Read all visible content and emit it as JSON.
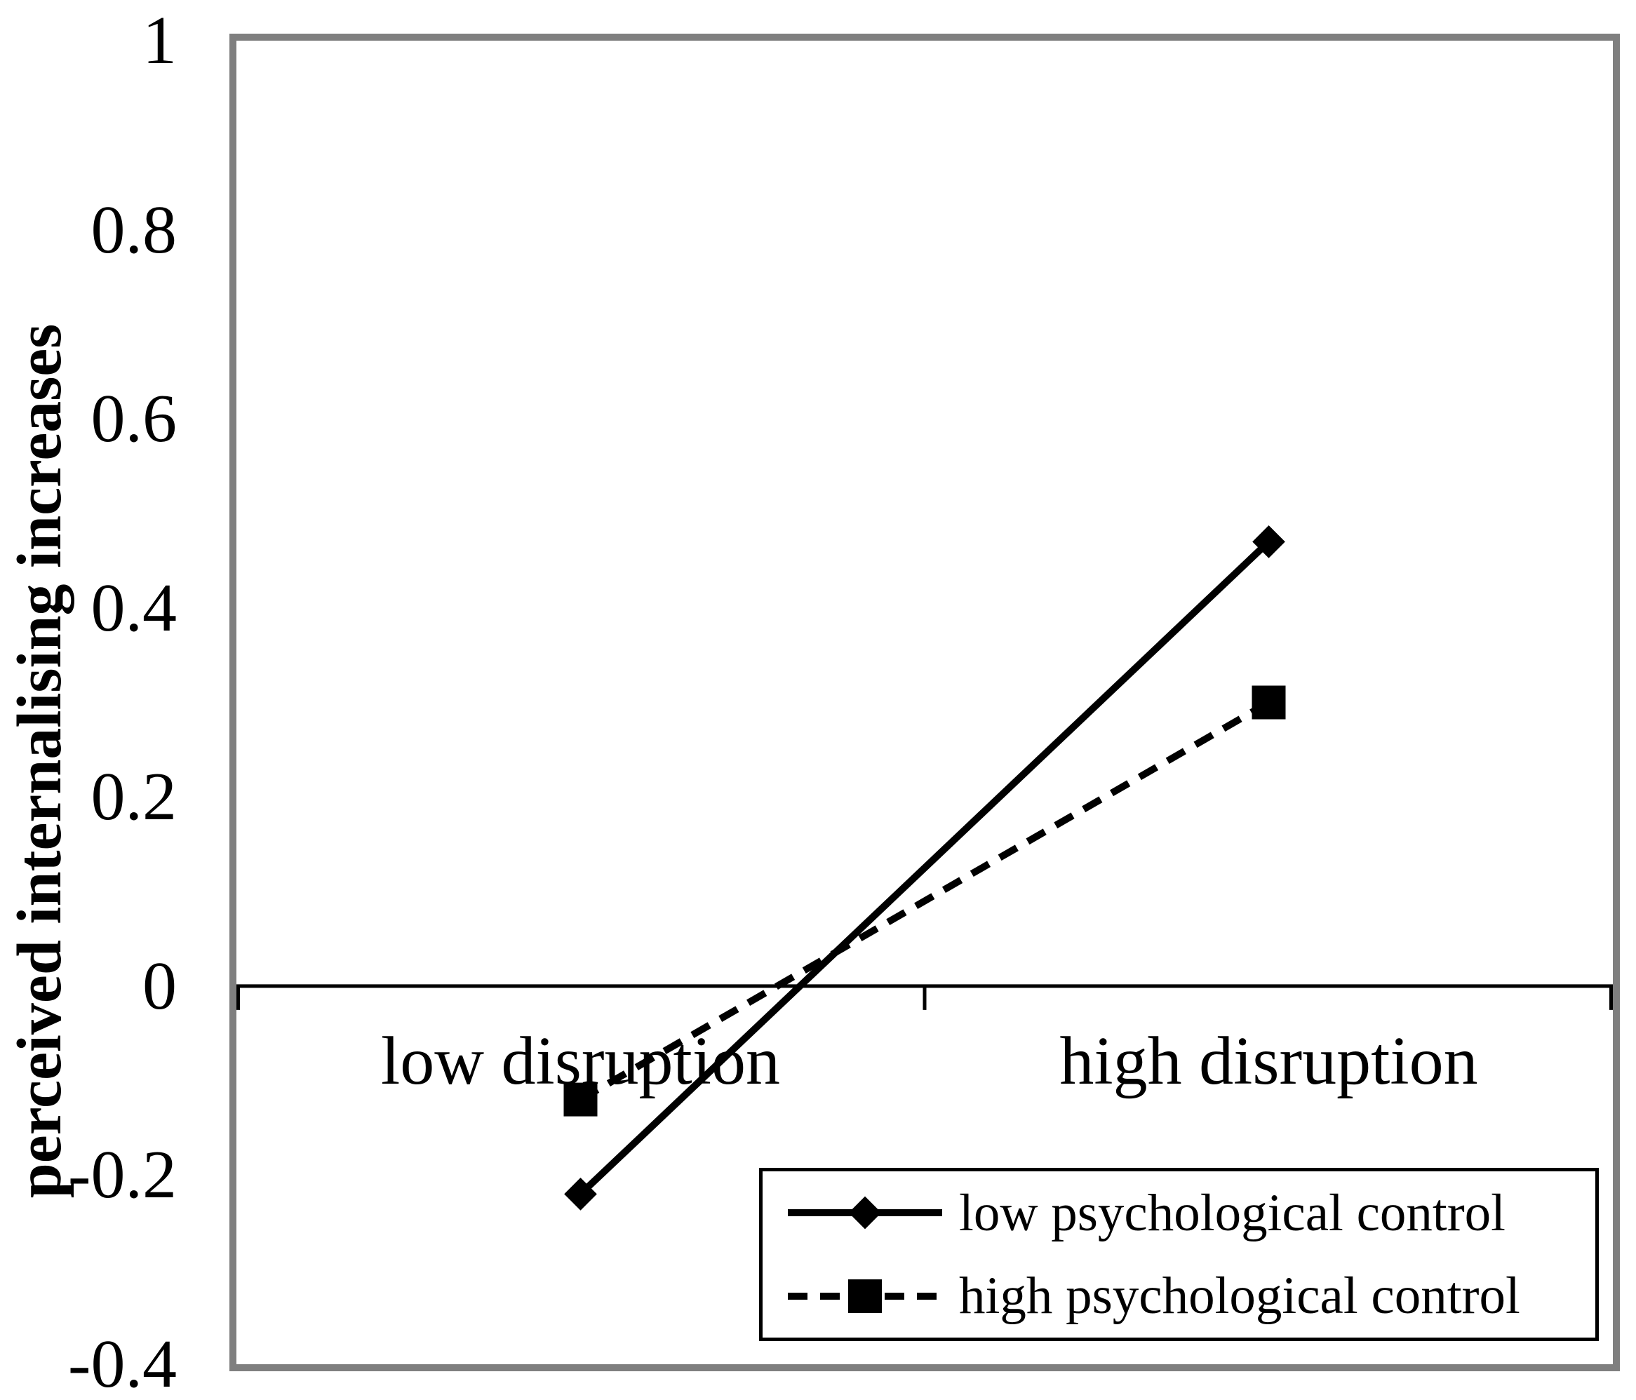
{
  "figure": {
    "background_color": "#ffffff",
    "plot_border_color": "#7f7f7f",
    "ink_color": "#000000"
  },
  "chart_data": {
    "type": "line",
    "categories": [
      "low disruption",
      "high disruption"
    ],
    "series": [
      {
        "name": "low psychological control",
        "values": [
          -0.22,
          0.47
        ],
        "line_style": "solid",
        "marker": "diamond",
        "color": "#000000"
      },
      {
        "name": "high psychological control",
        "values": [
          -0.12,
          0.3
        ],
        "line_style": "dashed",
        "marker": "square",
        "color": "#000000"
      }
    ],
    "title": "",
    "xlabel": "",
    "ylabel": "perceived internalising increases",
    "ylim": [
      -0.4,
      1
    ],
    "y_ticks": [
      1,
      0.8,
      0.6,
      0.4,
      0.2,
      0,
      -0.2,
      -0.4
    ],
    "grid": false,
    "zero_baseline": true,
    "legend_position": "inside-bottom-right"
  }
}
